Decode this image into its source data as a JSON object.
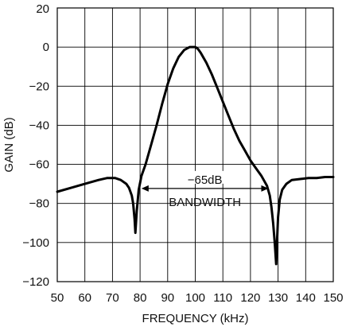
{
  "chart_data": {
    "type": "line",
    "title": "",
    "xlabel": "FREQUENCY (kHz)",
    "ylabel": "GAIN (dB)",
    "xlim": [
      50,
      150
    ],
    "ylim": [
      -120,
      20
    ],
    "xticks": [
      50,
      60,
      70,
      80,
      90,
      100,
      110,
      120,
      130,
      140,
      150
    ],
    "yticks": [
      20,
      0,
      -20,
      -40,
      -60,
      -80,
      -100,
      -120
    ],
    "xtick_labels": [
      "50",
      "60",
      "70",
      "80",
      "90",
      "100",
      "110",
      "120",
      "130",
      "140",
      "150"
    ],
    "ytick_labels": [
      "20",
      "0",
      "−20",
      "−40",
      "−60",
      "−80",
      "−100",
      "−120"
    ],
    "grid": true,
    "line_color": "#000000",
    "series": [
      {
        "name": "",
        "x": [
          50,
          55,
          60,
          65,
          68,
          71,
          73,
          75,
          76,
          77,
          77.5,
          78,
          78.3,
          78.8,
          79.5,
          80.5,
          82,
          84,
          86,
          88,
          90,
          92,
          94,
          96,
          98,
          99,
          100,
          101,
          102,
          104,
          106,
          108,
          110,
          112,
          114,
          116,
          118,
          120,
          122,
          124,
          126,
          127,
          127.6,
          128.2,
          128.8,
          129.3,
          129.6,
          130,
          130.6,
          131.5,
          133,
          135,
          138,
          141,
          144,
          147,
          150
        ],
        "y": [
          -74,
          -72,
          -70,
          -68,
          -67,
          -67,
          -68,
          -70,
          -72,
          -76,
          -80,
          -88,
          -95,
          -84,
          -73,
          -66,
          -60,
          -50,
          -40,
          -29,
          -19,
          -11,
          -5,
          -1.5,
          0,
          0,
          0,
          -1,
          -3,
          -8,
          -14,
          -21,
          -28,
          -35,
          -42,
          -48,
          -53,
          -58,
          -62,
          -66,
          -71,
          -76,
          -82,
          -90,
          -100,
          -111,
          -100,
          -87,
          -78,
          -73,
          -70,
          -68,
          -67.5,
          -67,
          -67,
          -66.5,
          -66.5
        ]
      }
    ],
    "annotations": {
      "level": "−65dB",
      "label": "BANDWIDTH",
      "y": -65,
      "x_start": 80.5,
      "x_end": 126.5
    }
  }
}
